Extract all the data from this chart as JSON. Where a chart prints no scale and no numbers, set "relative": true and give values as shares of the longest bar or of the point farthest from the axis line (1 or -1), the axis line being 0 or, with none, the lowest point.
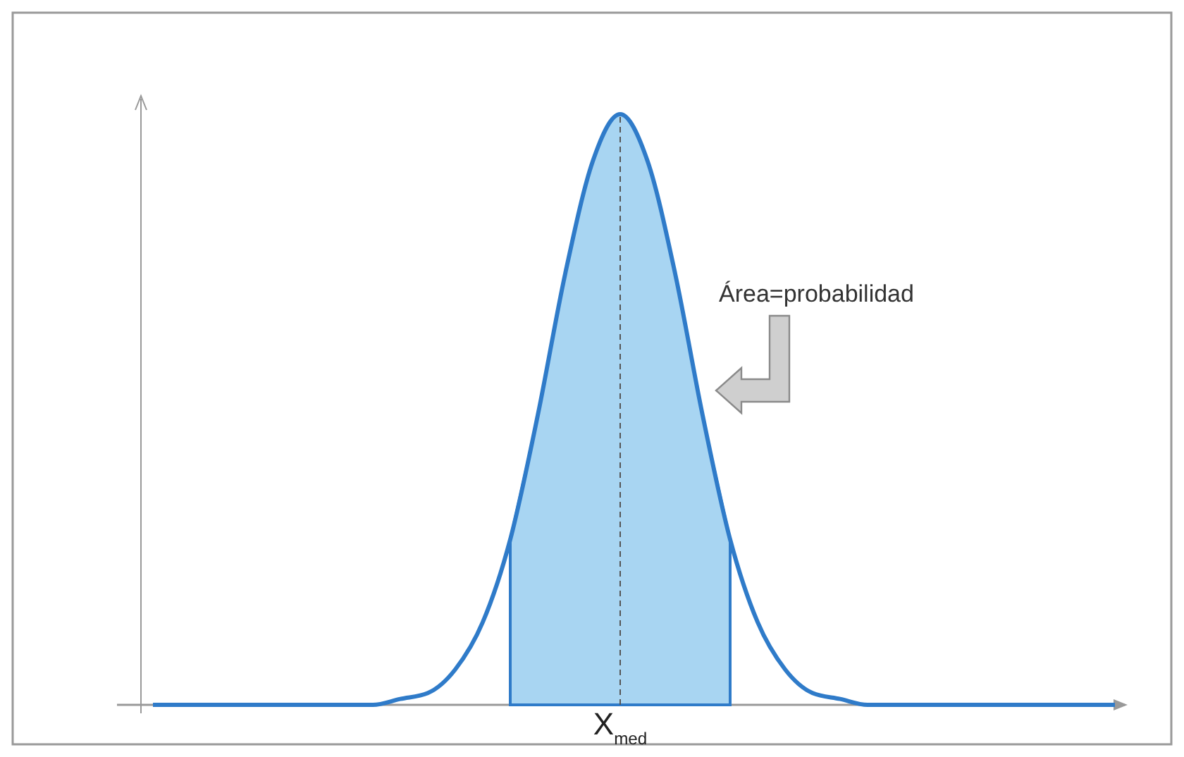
{
  "chart_data": {
    "type": "line",
    "relative": true,
    "categories": [
      null,
      null,
      null,
      null,
      null,
      null,
      null,
      null,
      null,
      null,
      null,
      null,
      null,
      null,
      null,
      null,
      null,
      null,
      null,
      null,
      null,
      null,
      null,
      null,
      null,
      null,
      null,
      null,
      null,
      null,
      null,
      null,
      null,
      null,
      null,
      null
    ],
    "series": [
      {
        "type": "area",
        "color": "#a8d5f2",
        "values": [
          null,
          null,
          null,
          null,
          null,
          null,
          null,
          null,
          null,
          null,
          null,
          null,
          null,
          0.28,
          0.49,
          0.73,
          0.92,
          1,
          0.92,
          0.73,
          0.49,
          0.28,
          null,
          null,
          null,
          null,
          null,
          null,
          null,
          null,
          null,
          null,
          null,
          null,
          null,
          null
        ]
      },
      {
        "type": "line",
        "color": "#2f7bc9",
        "values": [
          0,
          0,
          0,
          0,
          0,
          0,
          0,
          0,
          0,
          0.01,
          0.02,
          0.06,
          0.14,
          0.28,
          0.49,
          0.73,
          0.92,
          1,
          0.92,
          0.73,
          0.49,
          0.28,
          0.14,
          0.06,
          0.02,
          0.01,
          0,
          0,
          0,
          0,
          0,
          0,
          0,
          0,
          0,
          0
        ]
      }
    ],
    "annotations": [
      "Área=probabilidad",
      "X$_{med}$"
    ]
  }
}
